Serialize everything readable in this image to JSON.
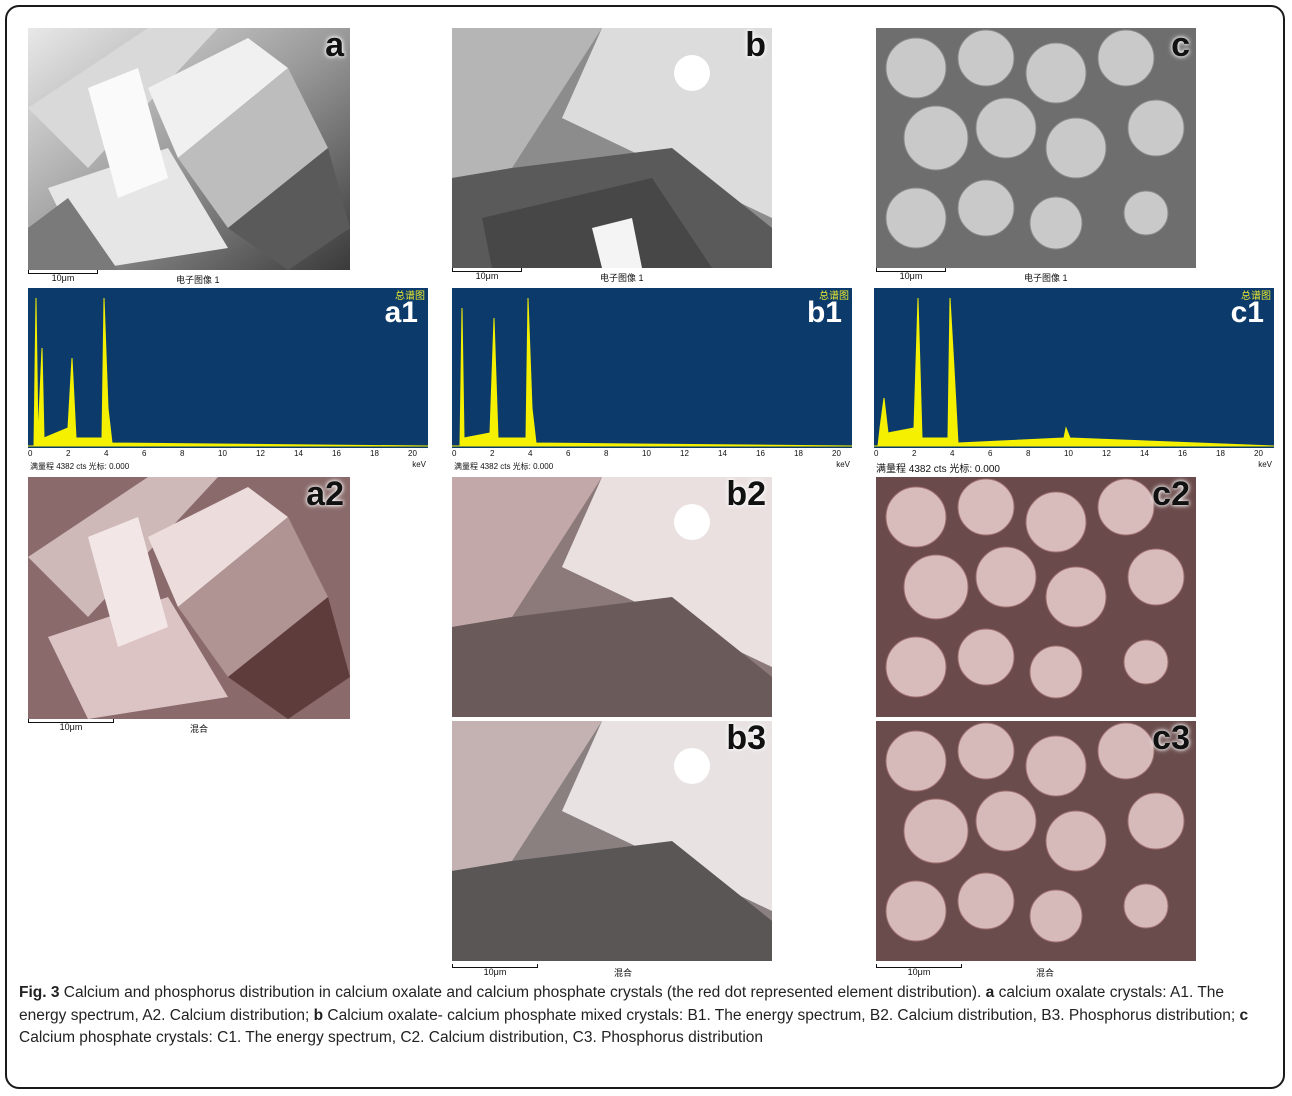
{
  "panels": {
    "a": {
      "letter": "a",
      "scale": "10μm",
      "caption": "电子图像 1"
    },
    "b": {
      "letter": "b",
      "scale": "10μm",
      "caption": "电子图像 1"
    },
    "c": {
      "letter": "c",
      "scale": "10μm",
      "caption": "电子图像 1"
    },
    "a2": {
      "letter": "a2",
      "scale": "10μm",
      "caption": "混合"
    },
    "b2": {
      "letter": "b2"
    },
    "c2": {
      "letter": "c2"
    },
    "b3": {
      "letter": "b3",
      "scale": "10μm",
      "caption": "混合"
    },
    "c3": {
      "letter": "c3",
      "scale": "10μm",
      "caption": "混合"
    }
  },
  "spectra": {
    "a1": {
      "label": "a1",
      "title": "总谱图",
      "status": "满量程 4382 cts 光标: 0.000",
      "unit": "keV",
      "ticks": [
        "0",
        "2",
        "4",
        "6",
        "8",
        "10",
        "12",
        "14",
        "16",
        "18",
        "20"
      ]
    },
    "b1": {
      "label": "b1",
      "title": "总谱图",
      "status": "满量程 4382 cts 光标: 0.000",
      "unit": "keV",
      "ticks": [
        "0",
        "2",
        "4",
        "6",
        "8",
        "10",
        "12",
        "14",
        "16",
        "18",
        "20"
      ]
    },
    "c1": {
      "label": "c1",
      "title": "总谱图",
      "status": "满量程 4382 cts 光标: 0.000",
      "unit": "keV",
      "ticks": [
        "0",
        "2",
        "4",
        "6",
        "8",
        "10",
        "12",
        "14",
        "16",
        "18",
        "20"
      ]
    }
  },
  "caption": {
    "fig": "Fig. 3",
    "intro": " Calcium and phosphorus distribution in calcium oxalate and calcium phosphate crystals (the red dot represented element distribution). ",
    "a_key": "a",
    "a_text": " calcium oxalate crystals: A1. The energy spectrum, A2. Calcium distribution; ",
    "b_key": "b",
    "b_text": " Calcium oxalate- calcium phosphate mixed crystals: B1. The energy spectrum, B2. Calcium distribution, B3. Phosphorus distribution; ",
    "c_key": "c",
    "c_text": " Calcium phosphate crystals: C1. The energy spectrum, C2. Calcium distribution, C3. Phosphorus distribution"
  }
}
